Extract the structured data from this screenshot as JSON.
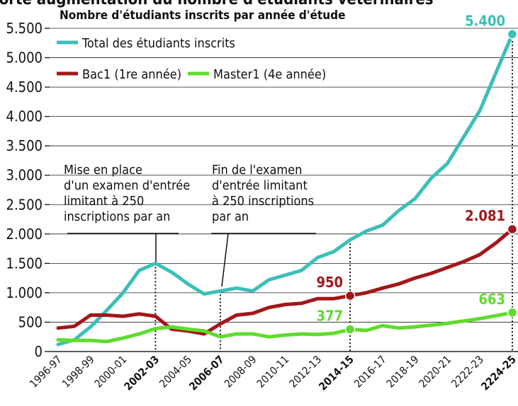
{
  "chart_data": {
    "type": "line",
    "title": "Forte augmentation du nombre d'étudiants vétérinaires",
    "subtitle": "Nombre d'étudiants inscrits par année d'étude",
    "categories": [
      "1996-97",
      null,
      "1998-99",
      null,
      "2000-01",
      null,
      "2002-03",
      null,
      "2004-05",
      null,
      "2006-07",
      null,
      "2008-09",
      null,
      "2010-11",
      null,
      "2012-13",
      null,
      "2014-15",
      null,
      "2016-17",
      null,
      "2018-19",
      null,
      "2020-21",
      null,
      "2222-23",
      null,
      "2224-25"
    ],
    "highlight": [
      6,
      10,
      18,
      28
    ],
    "series": [
      {
        "name": "Total des étudiants inscrits",
        "color": "#3cbfb8",
        "values": [
          120,
          200,
          420,
          700,
          1000,
          1380,
          1500,
          1350,
          1150,
          980,
          1030,
          1080,
          1030,
          1220,
          1300,
          1380,
          1600,
          1700,
          1900,
          2050,
          2150,
          2400,
          2600,
          2950,
          3200,
          3650,
          4100,
          4750,
          5400
        ],
        "value_labels": [
          null,
          null,
          null,
          null,
          null,
          null,
          null,
          null,
          null,
          null,
          null,
          null,
          null,
          null,
          null,
          null,
          null,
          null,
          null,
          null,
          null,
          null,
          null,
          null,
          null,
          null,
          null,
          null,
          "5.400"
        ]
      },
      {
        "name": "Bac1 (1re année)",
        "color": "#a3161a",
        "values": [
          400,
          430,
          620,
          620,
          600,
          640,
          600,
          380,
          350,
          300,
          470,
          620,
          650,
          750,
          800,
          820,
          900,
          900,
          950,
          1000,
          1080,
          1150,
          1250,
          1330,
          1430,
          1530,
          1650,
          1850,
          2081
        ],
        "value_labels": [
          null,
          null,
          null,
          null,
          null,
          null,
          null,
          null,
          null,
          null,
          null,
          null,
          null,
          null,
          null,
          null,
          null,
          null,
          "950",
          null,
          null,
          null,
          null,
          null,
          null,
          null,
          null,
          null,
          "2.081"
        ]
      },
      {
        "name": "Master1 (4e année)",
        "color": "#5fdc2c",
        "values": [
          200,
          190,
          190,
          170,
          230,
          300,
          390,
          420,
          380,
          350,
          250,
          300,
          300,
          250,
          280,
          300,
          290,
          310,
          377,
          360,
          440,
          400,
          420,
          450,
          480,
          520,
          560,
          610,
          663
        ],
        "value_labels": [
          null,
          null,
          null,
          null,
          null,
          null,
          null,
          null,
          null,
          null,
          null,
          null,
          null,
          null,
          null,
          null,
          null,
          null,
          "377",
          null,
          null,
          null,
          null,
          null,
          null,
          null,
          null,
          null,
          "663"
        ]
      }
    ],
    "annotations": [
      [
        "Mise en place",
        "d'un examen d'entrée",
        "limitant à 250",
        "inscriptions par an"
      ],
      [
        "Fin de l'examen",
        "d'entrée limitant",
        "à 250 inscriptions",
        "par an"
      ]
    ],
    "ylim": [
      0,
      5500
    ],
    "yticks": [
      0,
      500,
      {
        "value": 1000,
        "label": "1.000"
      },
      {
        "value": 1500,
        "label": "1.500"
      },
      {
        "value": 2000,
        "label": "2.000"
      },
      {
        "value": 2500,
        "label": "2.500"
      },
      {
        "value": 3000,
        "label": "3.000"
      },
      {
        "value": 3500,
        "label": "3.500"
      },
      {
        "value": 4000,
        "label": "4.000"
      },
      {
        "value": 4500,
        "label": "4.500"
      },
      {
        "value": 5000,
        "label": "5.000"
      },
      {
        "value": 5500,
        "label": "5.500"
      }
    ],
    "grid": true
  }
}
